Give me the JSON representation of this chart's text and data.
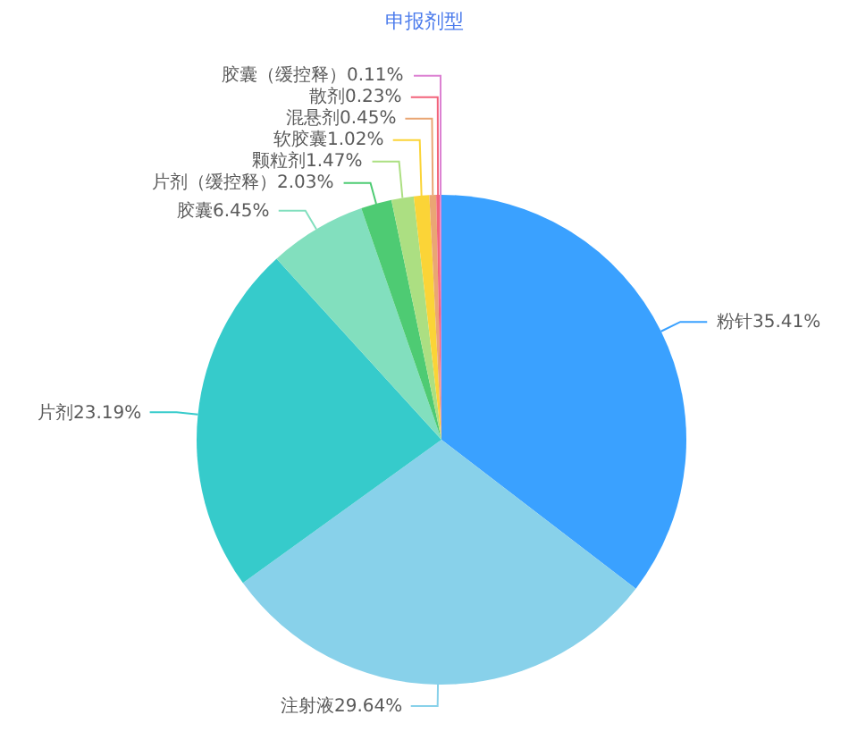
{
  "chart_data": {
    "type": "pie",
    "title": "申报剂型",
    "categories": [
      "粉针",
      "注射液",
      "片剂",
      "胶囊",
      "片剂（缓控释）",
      "颗粒剂",
      "软胶囊",
      "混悬剂",
      "散剂",
      "胶囊（缓控释）"
    ],
    "values": [
      35.41,
      29.64,
      23.19,
      6.45,
      2.03,
      1.47,
      1.02,
      0.45,
      0.23,
      0.11
    ],
    "value_labels": [
      "35.41%",
      "29.64%",
      "23.19%",
      "6.45%",
      "2.03%",
      "1.47%",
      "1.02%",
      "0.45%",
      "0.23%",
      "0.11%"
    ],
    "colors": [
      "#3aa1ff",
      "#88d1ea",
      "#36cbcb",
      "#82dfbe",
      "#4ecb73",
      "#acdf82",
      "#fbd437",
      "#eaa674",
      "#f2637b",
      "#dc81d2"
    ]
  }
}
